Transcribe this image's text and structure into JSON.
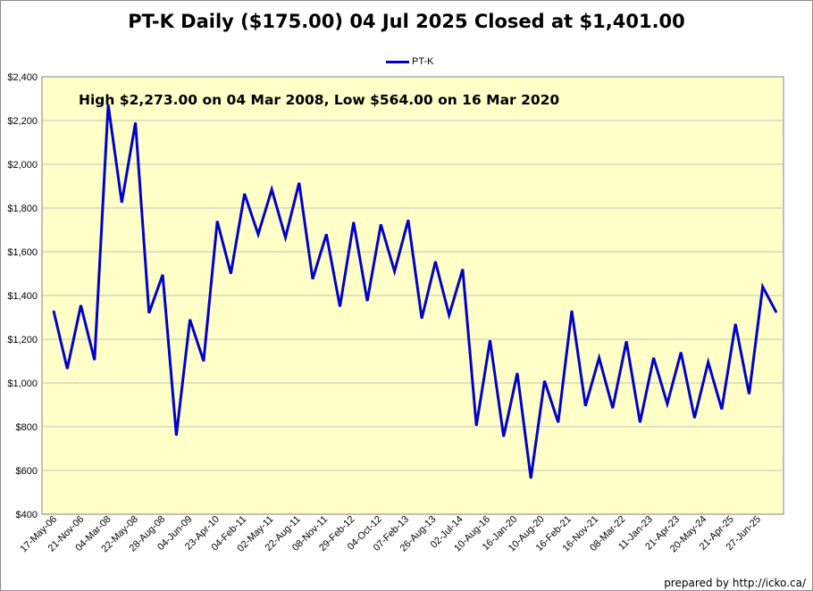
{
  "chart_data": {
    "type": "line",
    "title": "PT-K Daily ($175.00)  04 Jul 2025 Closed at $1,401.00",
    "annotation": "High $2,273.00 on 04 Mar 2008, Low $564.00 on 16 Mar 2020",
    "legend": "top-center",
    "grid": true,
    "ylim": [
      400,
      2400
    ],
    "yticks": [
      "$400",
      "$600",
      "$800",
      "$1,000",
      "$1,200",
      "$1,400",
      "$1,600",
      "$1,800",
      "$2,000",
      "$2,200",
      "$2,400"
    ],
    "xtick_labels": [
      "17-May-06",
      "21-Nov-06",
      "04-Mar-08",
      "22-May-08",
      "28-Aug-08",
      "04-Jun-09",
      "23-Apr-10",
      "04-Feb-11",
      "02-May-11",
      "22-Aug-11",
      "08-Nov-11",
      "29-Feb-12",
      "04-Oct-12",
      "07-Feb-13",
      "26-Aug-13",
      "02-Jul-14",
      "10-Aug-16",
      "16-Jan-20",
      "10-Aug-20",
      "16-Feb-21",
      "16-Nov-21",
      "08-Mar-22",
      "11-Jan-23",
      "21-Apr-23",
      "20-May-24",
      "21-Apr-25",
      "27-Jun-25"
    ],
    "series": [
      {
        "name": "PT-K",
        "color": "#0000cc",
        "values": [
          1330,
          1065,
          1355,
          1105,
          2273,
          1825,
          2190,
          1320,
          1495,
          760,
          1290,
          1100,
          1740,
          1500,
          1865,
          1680,
          1885,
          1665,
          1915,
          1475,
          1680,
          1350,
          1735,
          1375,
          1725,
          1510,
          1745,
          1295,
          1555,
          1310,
          1520,
          805,
          1195,
          755,
          1045,
          564,
          1010,
          820,
          1330,
          895,
          1115,
          885,
          1190,
          820,
          1115,
          905,
          1140,
          840,
          1095,
          880,
          1270,
          950,
          1440,
          1322
        ]
      }
    ]
  },
  "footer": "prepared by http://icko.ca/"
}
